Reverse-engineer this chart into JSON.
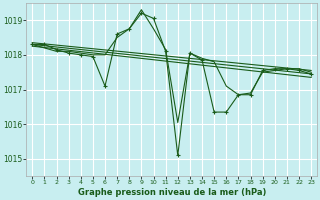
{
  "title": "Graphe pression niveau de la mer (hPa)",
  "background_color": "#c8eef0",
  "grid_color": "#ffffff",
  "line_color": "#1a5c1a",
  "xlim": [
    -0.5,
    23.5
  ],
  "ylim": [
    1014.5,
    1019.5
  ],
  "yticks": [
    1015,
    1016,
    1017,
    1018,
    1019
  ],
  "xticks": [
    0,
    1,
    2,
    3,
    4,
    5,
    6,
    7,
    8,
    9,
    10,
    11,
    12,
    13,
    14,
    15,
    16,
    17,
    18,
    19,
    20,
    21,
    22,
    23
  ],
  "series": [
    {
      "x": [
        0,
        1,
        2,
        3,
        4,
        5,
        6,
        7,
        8,
        9,
        10,
        11,
        12,
        13,
        14,
        15,
        16,
        17,
        18,
        19,
        20,
        21,
        22,
        23
      ],
      "y": [
        1018.3,
        1018.3,
        1018.15,
        1018.05,
        1018.0,
        1017.95,
        1017.1,
        1018.6,
        1018.75,
        1019.2,
        1019.05,
        1018.1,
        1015.1,
        1018.05,
        1017.85,
        1016.35,
        1016.35,
        1016.85,
        1016.85,
        1017.55,
        1017.6,
        1017.6,
        1017.55,
        1017.45
      ],
      "has_markers": true
    },
    {
      "x": [
        0,
        1,
        2,
        3,
        4,
        5,
        6,
        7,
        8,
        9,
        10,
        11,
        12,
        13,
        14,
        15,
        16,
        17,
        18,
        19,
        20,
        21,
        22,
        23
      ],
      "y": [
        1018.3,
        1018.2,
        1018.1,
        1018.1,
        1018.05,
        1018.0,
        1018.0,
        1018.5,
        1018.75,
        1019.3,
        1018.75,
        1018.15,
        1016.05,
        1018.05,
        1017.9,
        1017.8,
        1017.1,
        1016.85,
        1016.9,
        1017.5,
        1017.55,
        1017.6,
        1017.6,
        1017.5
      ],
      "has_markers": false
    },
    {
      "x": [
        0,
        23
      ],
      "y": [
        1018.35,
        1017.55
      ],
      "has_markers": false
    },
    {
      "x": [
        0,
        23
      ],
      "y": [
        1018.3,
        1017.45
      ],
      "has_markers": false
    },
    {
      "x": [
        0,
        23
      ],
      "y": [
        1018.25,
        1017.35
      ],
      "has_markers": false
    }
  ]
}
